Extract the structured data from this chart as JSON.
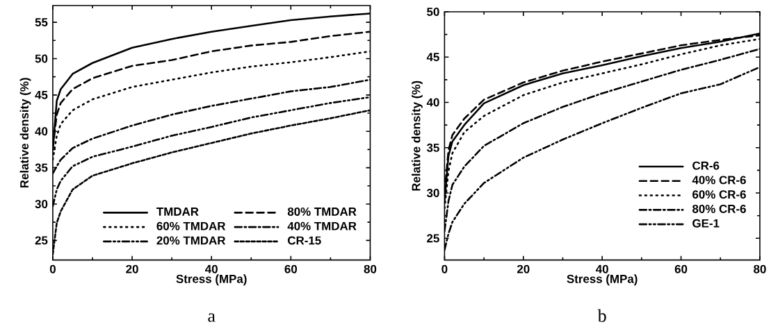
{
  "chart_data": [
    {
      "type": "line",
      "xlabel": "Stress (MPa)",
      "ylabel": "Relative density (%)",
      "xlim": [
        0,
        80
      ],
      "ylim": [
        22.3,
        57.3
      ],
      "xticks": [
        0,
        20,
        40,
        60,
        80
      ],
      "yticks": [
        25,
        30,
        35,
        40,
        45,
        50,
        55
      ],
      "legend": "bottom right",
      "marker": "none",
      "annotations": [
        "a"
      ],
      "x": [
        0,
        1,
        2,
        5,
        10,
        20,
        30,
        40,
        50,
        60,
        70,
        80
      ],
      "series": [
        {
          "name": "TMDAR",
          "color": "#000000",
          "line_style": "solid",
          "values": [
            37.4,
            44.2,
            45.8,
            47.9,
            49.4,
            51.5,
            52.7,
            53.7,
            54.5,
            55.3,
            55.8,
            56.2
          ]
        },
        {
          "name": "80% TMDAR",
          "color": "#000000",
          "line_style": "dashed",
          "values": [
            37.7,
            42.3,
            43.9,
            45.8,
            47.3,
            49.0,
            49.8,
            51.0,
            51.8,
            52.3,
            53.1,
            53.7
          ]
        },
        {
          "name": "60% TMDAR",
          "color": "#000000",
          "line_style": "dotted",
          "values": [
            36.1,
            39.4,
            41.0,
            42.9,
            44.4,
            46.1,
            47.1,
            48.1,
            48.9,
            49.5,
            50.2,
            51.0
          ]
        },
        {
          "name": "40% TMDAR",
          "color": "#000000",
          "line_style": "dashdot",
          "values": [
            34.2,
            35.2,
            36.1,
            37.7,
            39.0,
            40.8,
            42.3,
            43.5,
            44.5,
            45.5,
            46.1,
            47.1
          ]
        },
        {
          "name": "20% TMDAR",
          "color": "#000000",
          "line_style": "dashdotdot",
          "values": [
            29.7,
            32.0,
            33.2,
            35.2,
            36.5,
            37.9,
            39.4,
            40.6,
            41.9,
            42.9,
            43.9,
            44.7
          ]
        },
        {
          "name": "CR-15",
          "color": "#000000",
          "line_style": "shortdash",
          "values": [
            23.1,
            27.4,
            29.0,
            32.0,
            33.9,
            35.6,
            37.1,
            38.4,
            39.7,
            40.8,
            41.8,
            42.9
          ]
        }
      ]
    },
    {
      "type": "line",
      "xlabel": "Stress (MPa)",
      "ylabel": "Relative density (%)",
      "xlim": [
        0,
        80
      ],
      "ylim": [
        22.6,
        50
      ],
      "xticks": [
        0,
        20,
        40,
        60,
        80
      ],
      "yticks": [
        25,
        30,
        35,
        40,
        45,
        50
      ],
      "legend": "right",
      "marker": "none",
      "annotations": [
        "b"
      ],
      "x": [
        0,
        1,
        2,
        5,
        10,
        20,
        30,
        40,
        50,
        60,
        70,
        80
      ],
      "series": [
        {
          "name": "CR-6",
          "color": "#000000",
          "line_style": "solid",
          "values": [
            29.1,
            34.1,
            35.7,
            37.5,
            39.9,
            41.9,
            43.2,
            44.1,
            45.1,
            46.0,
            46.7,
            47.6
          ]
        },
        {
          "name": "40% CR-6",
          "color": "#000000",
          "line_style": "dashed",
          "values": [
            30.0,
            34.7,
            36.4,
            38.2,
            40.3,
            42.2,
            43.5,
            44.5,
            45.4,
            46.3,
            46.9,
            47.4
          ]
        },
        {
          "name": "60% CR-6",
          "color": "#000000",
          "line_style": "dotted",
          "values": [
            28.3,
            32.4,
            34.4,
            36.7,
            38.5,
            40.8,
            42.2,
            43.2,
            44.2,
            45.3,
            46.3,
            47.0
          ]
        },
        {
          "name": "80% CR-6",
          "color": "#000000",
          "line_style": "dashdot",
          "values": [
            25.8,
            29.1,
            30.9,
            32.9,
            35.2,
            37.7,
            39.5,
            41.0,
            42.3,
            43.6,
            44.7,
            45.9
          ]
        },
        {
          "name": "GE-1",
          "color": "#000000",
          "line_style": "dashdotdot",
          "values": [
            23.7,
            25.5,
            26.8,
            28.8,
            31.1,
            33.9,
            35.9,
            37.7,
            39.4,
            41.0,
            42.0,
            43.9
          ]
        }
      ]
    }
  ]
}
